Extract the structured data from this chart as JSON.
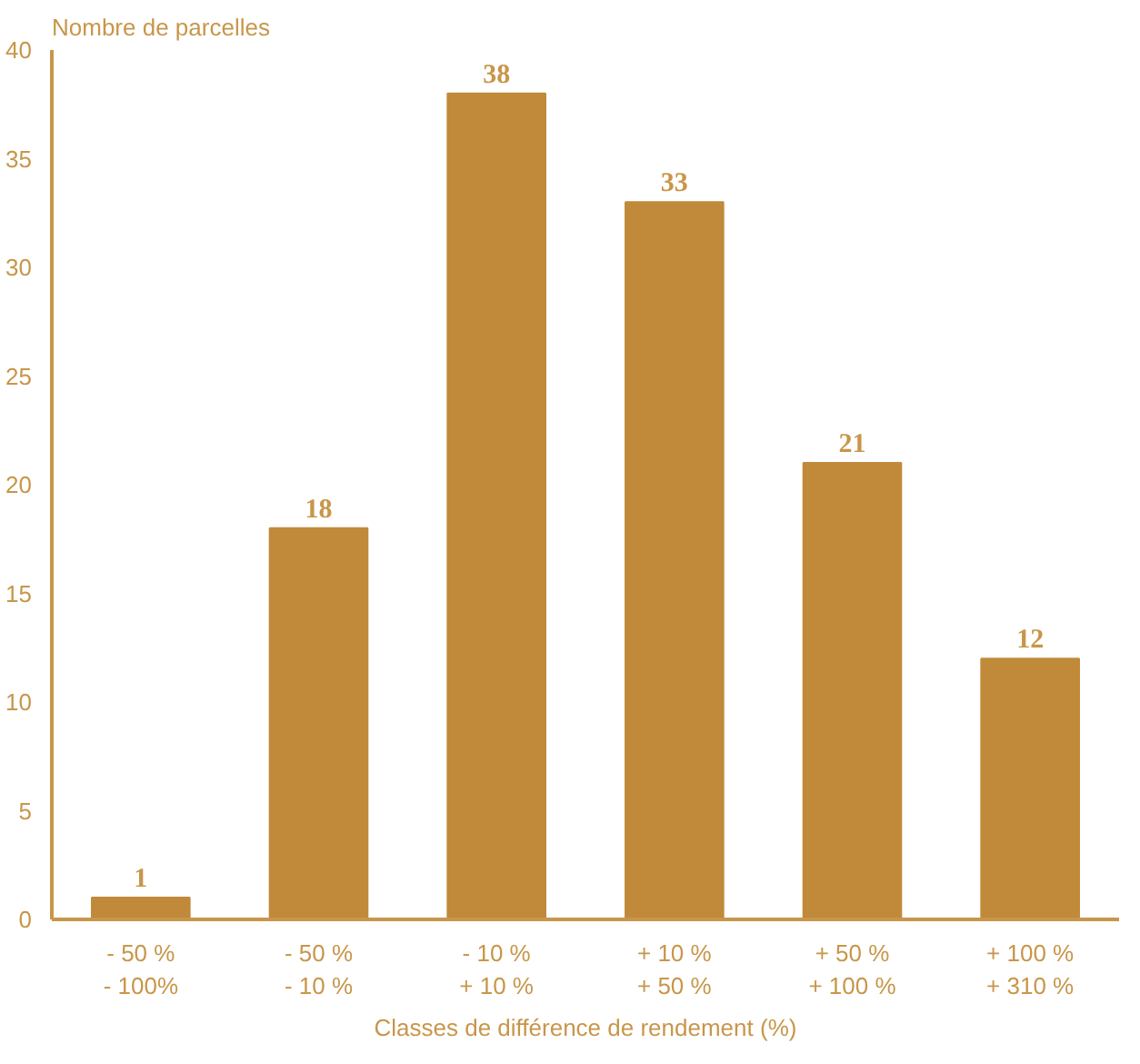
{
  "chart_data": {
    "type": "bar",
    "ylabel": "Nombre de parcelles",
    "xlabel": "Classes de différence de rendement (%)",
    "categories": [
      "- 50 %\n- 100%",
      "- 50 %\n- 10 %",
      "- 10 %\n+ 10 %",
      "+ 10 %\n+ 50 %",
      "+ 50 %\n+ 100 %",
      "+ 100 %\n+ 310 %"
    ],
    "values": [
      1,
      18,
      38,
      33,
      21,
      12
    ],
    "color": "#c08a3a",
    "ylim": [
      0,
      40
    ],
    "yticks": [
      0,
      5,
      10,
      15,
      20,
      25,
      30,
      35,
      40
    ],
    "grid": false,
    "data_labels": true
  }
}
